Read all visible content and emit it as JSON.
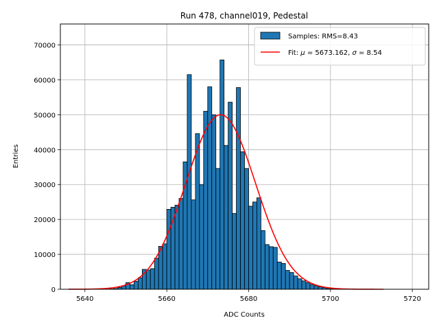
{
  "chart_data": {
    "type": "bar",
    "title": "Run 478, channel019, Pedestal",
    "xlabel": "ADC Counts",
    "ylabel": "Entries",
    "xlim": [
      5634,
      5724
    ],
    "ylim": [
      0,
      76000
    ],
    "xticks": [
      5640,
      5660,
      5680,
      5700,
      5720
    ],
    "yticks": [
      0,
      10000,
      20000,
      30000,
      40000,
      50000,
      60000,
      70000
    ],
    "grid": true,
    "legend_position": "top-right",
    "bin_width": 1,
    "series": [
      {
        "name": "Samples: RMS=8.43",
        "kind": "histogram",
        "color": "#1f77b4",
        "edgecolor": "#000000",
        "bin_starts": [
          5646,
          5647,
          5648,
          5649,
          5650,
          5651,
          5652,
          5653,
          5654,
          5655,
          5656,
          5657,
          5658,
          5659,
          5660,
          5661,
          5662,
          5663,
          5664,
          5665,
          5666,
          5667,
          5668,
          5669,
          5670,
          5671,
          5672,
          5673,
          5674,
          5675,
          5676,
          5677,
          5678,
          5679,
          5680,
          5681,
          5682,
          5683,
          5684,
          5685,
          5686,
          5687,
          5688,
          5689,
          5690,
          5691,
          5692,
          5693,
          5694,
          5695,
          5696,
          5697,
          5698,
          5699,
          5700,
          5701
        ],
        "values": [
          100,
          200,
          500,
          1000,
          1900,
          1300,
          2300,
          3300,
          5700,
          5500,
          5900,
          8900,
          12300,
          13000,
          22900,
          23500,
          24100,
          26000,
          36500,
          61500,
          25600,
          44600,
          30000,
          51000,
          58000,
          50000,
          34600,
          65700,
          41200,
          53600,
          21700,
          57800,
          39400,
          34600,
          23800,
          25000,
          26200,
          16800,
          12800,
          12200,
          12000,
          7800,
          7400,
          5400,
          4800,
          3800,
          3000,
          2400,
          1900,
          1400,
          1000,
          700,
          500,
          300,
          200,
          100
        ]
      },
      {
        "name": "Fit: μ = 5673.162, σ = 8.54",
        "kind": "line",
        "color": "#ff0000",
        "function": "gaussian",
        "mu": 5673.162,
        "sigma": 8.54,
        "amplitude": 50000,
        "x_range": [
          5636,
          5713
        ]
      }
    ]
  },
  "legend": {
    "samples_label": "Samples: RMS=8.43",
    "fit_prefix": "Fit: ",
    "fit_mu_symbol": "μ",
    "fit_mu_text": " = 5673.162, ",
    "fit_sigma_symbol": "σ",
    "fit_sigma_text": " = 8.54"
  }
}
